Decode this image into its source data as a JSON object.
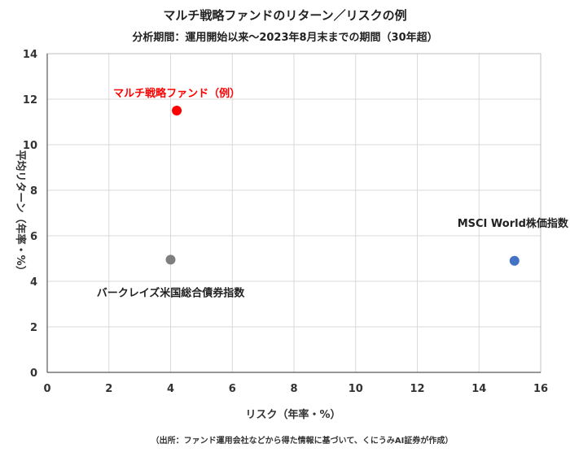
{
  "chart_data": {
    "type": "scatter",
    "title": "マルチ戦略ファンドのリターン／リスクの例",
    "subtitle": "分析期間：運用開始以来～2023年8月末までの期間（30年超）",
    "xlabel": "リスク（年率・%）",
    "ylabel": "平均リターン（年率・%）",
    "xlim": [
      0,
      16
    ],
    "ylim": [
      0,
      14
    ],
    "x_ticks": [
      "0",
      "2",
      "4",
      "6",
      "8",
      "10",
      "12",
      "14",
      "16"
    ],
    "y_ticks": [
      "0",
      "2",
      "4",
      "6",
      "8",
      "10",
      "12",
      "14"
    ],
    "grid": true,
    "points": [
      {
        "label": "マルチ戦略ファンド（例）",
        "x": 4.2,
        "y": 11.5,
        "color": "#ff0000",
        "label_color": "#ff0000"
      },
      {
        "label": "バークレイズ米国総合債券指数",
        "x": 4.0,
        "y": 4.95,
        "color": "#7f7f7f",
        "label_color": "#222222"
      },
      {
        "label": "MSCI World株価指数",
        "x": 15.15,
        "y": 4.9,
        "color": "#4472c4",
        "label_color": "#222222"
      }
    ],
    "source": "（出所：ファンド運用会社などから得た情報に基づいて、くにうみAI証券が作成）"
  }
}
